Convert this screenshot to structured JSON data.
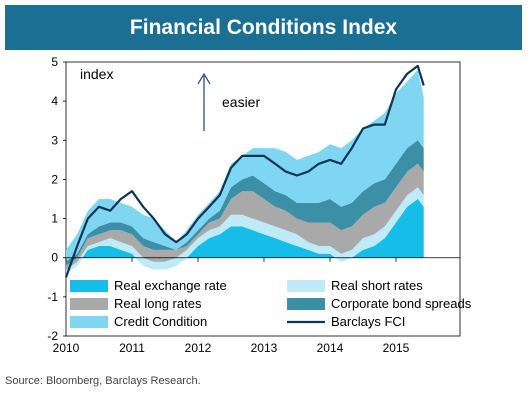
{
  "title": "Financial Conditions Index",
  "source": "Source: Bloomberg, Barclays Research.",
  "colors": {
    "banner": "#1b6f92",
    "real_exchange_rate": "#15bde8",
    "real_short_rates": "#bfeaf7",
    "real_long_rates": "#a9a9a9",
    "corporate_bond_spreads": "#3b8fa6",
    "credit_condition": "#7fd6f3",
    "barclays_fci": "#0e3554"
  },
  "chart_data": {
    "type": "area",
    "title": "Financial Conditions Index",
    "ylabel": "index",
    "ylim": [
      -2,
      5
    ],
    "yticks": [
      -2,
      -1,
      0,
      1,
      2,
      3,
      4,
      5
    ],
    "xlim": [
      2010,
      2015.97
    ],
    "xticks": [
      "2010",
      "2011",
      "2012",
      "2013",
      "2014",
      "2015"
    ],
    "annotations": [
      {
        "text": "index"
      },
      {
        "text": "easier"
      }
    ],
    "legend": {
      "placement": "bottom-inside"
    },
    "x": [
      2010.0,
      2010.17,
      2010.33,
      2010.5,
      2010.67,
      2010.83,
      2011.0,
      2011.17,
      2011.33,
      2011.5,
      2011.67,
      2011.83,
      2012.0,
      2012.17,
      2012.33,
      2012.5,
      2012.67,
      2012.83,
      2013.0,
      2013.17,
      2013.33,
      2013.5,
      2013.67,
      2013.83,
      2014.0,
      2014.17,
      2014.33,
      2014.5,
      2014.67,
      2014.83,
      2015.0,
      2015.17,
      2015.33,
      2015.42
    ],
    "series": [
      {
        "name": "Real exchange rate",
        "kind": "area",
        "values": [
          -0.4,
          -0.2,
          0.2,
          0.3,
          0.3,
          0.2,
          0.1,
          -0.2,
          -0.3,
          -0.3,
          -0.2,
          0.0,
          0.3,
          0.5,
          0.6,
          0.8,
          0.8,
          0.7,
          0.6,
          0.5,
          0.4,
          0.3,
          0.2,
          0.1,
          0.1,
          -0.1,
          0.0,
          0.2,
          0.3,
          0.5,
          0.9,
          1.3,
          1.5,
          1.3
        ]
      },
      {
        "name": "Real short rates",
        "kind": "area",
        "values": [
          0.1,
          0.1,
          0.1,
          0.1,
          0.2,
          0.2,
          0.2,
          0.2,
          0.2,
          0.2,
          0.2,
          0.2,
          0.2,
          0.2,
          0.2,
          0.3,
          0.3,
          0.3,
          0.3,
          0.3,
          0.3,
          0.3,
          0.2,
          0.2,
          0.2,
          0.2,
          0.2,
          0.3,
          0.3,
          0.3,
          0.3,
          0.3,
          0.3,
          0.3
        ]
      },
      {
        "name": "Real long rates",
        "kind": "area",
        "values": [
          0.1,
          0.1,
          0.2,
          0.2,
          0.2,
          0.3,
          0.3,
          0.3,
          0.3,
          0.3,
          0.2,
          0.1,
          0.1,
          0.2,
          0.2,
          0.4,
          0.6,
          0.7,
          0.6,
          0.5,
          0.5,
          0.4,
          0.5,
          0.6,
          0.6,
          0.6,
          0.6,
          0.6,
          0.7,
          0.6,
          0.6,
          0.6,
          0.6,
          0.6
        ]
      },
      {
        "name": "Corporate bond spreads",
        "kind": "area",
        "values": [
          0.1,
          0.1,
          0.1,
          0.2,
          0.2,
          0.2,
          0.2,
          0.2,
          0.2,
          0.1,
          0.0,
          0.1,
          0.1,
          0.1,
          0.2,
          0.3,
          0.3,
          0.4,
          0.4,
          0.4,
          0.4,
          0.4,
          0.5,
          0.5,
          0.6,
          0.6,
          0.6,
          0.6,
          0.6,
          0.6,
          0.6,
          0.6,
          0.6,
          0.6
        ]
      },
      {
        "name": "Credit Condition",
        "kind": "area",
        "values": [
          0.3,
          0.5,
          0.6,
          0.7,
          0.6,
          0.5,
          0.5,
          0.6,
          0.6,
          0.4,
          0.2,
          0.3,
          0.4,
          0.4,
          0.5,
          0.6,
          0.6,
          0.7,
          0.9,
          1.1,
          1.1,
          1.1,
          1.2,
          1.3,
          1.4,
          1.5,
          1.6,
          1.6,
          1.6,
          1.7,
          1.8,
          1.7,
          1.8,
          1.3
        ]
      },
      {
        "name": "Barclays FCI",
        "kind": "line",
        "values": [
          -0.5,
          0.3,
          1.0,
          1.3,
          1.2,
          1.5,
          1.7,
          1.3,
          1.0,
          0.6,
          0.4,
          0.6,
          1.0,
          1.3,
          1.6,
          2.3,
          2.6,
          2.6,
          2.6,
          2.4,
          2.2,
          2.1,
          2.2,
          2.4,
          2.5,
          2.4,
          2.8,
          3.3,
          3.4,
          3.4,
          4.3,
          4.7,
          4.9,
          4.4
        ]
      }
    ]
  }
}
